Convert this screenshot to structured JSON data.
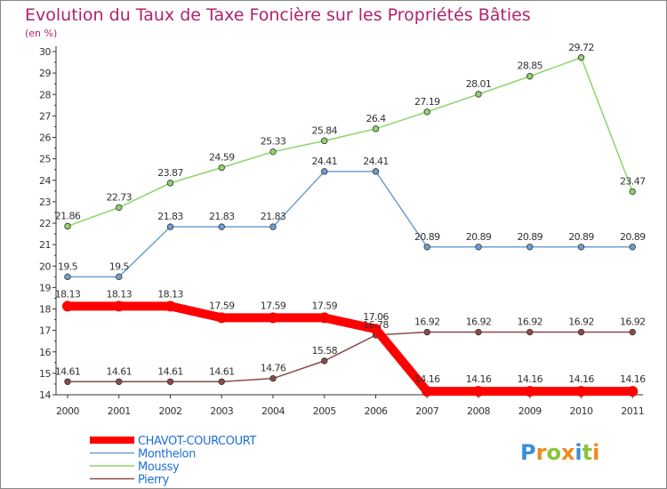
{
  "chart_data": {
    "type": "line",
    "title": "Evolution du Taux de Taxe Foncière sur les Propriétés Bâties",
    "subtitle": "(en %)",
    "x": [
      "2000",
      "2001",
      "2002",
      "2003",
      "2004",
      "2005",
      "2006",
      "2007",
      "2008",
      "2009",
      "2010",
      "2011"
    ],
    "y_ticks": [
      "14",
      "15",
      "16",
      "17",
      "18",
      "19",
      "20",
      "21",
      "22",
      "23",
      "24",
      "25",
      "26",
      "27",
      "28",
      "29",
      "30"
    ],
    "ylim": [
      14,
      30
    ],
    "grid": false,
    "legend_position": "bottom-left",
    "series": [
      {
        "name": "Moussy",
        "color": "#8fd46a",
        "values": [
          21.86,
          22.73,
          23.87,
          24.59,
          25.33,
          25.84,
          26.4,
          27.19,
          28.01,
          28.85,
          29.72,
          23.47
        ],
        "labels": [
          "21.86",
          "22.73",
          "23.87",
          "24.59",
          "25.33",
          "25.84",
          "26.4",
          "27.19",
          "28.01",
          "28.85",
          "29.72",
          "23.47"
        ]
      },
      {
        "name": "Monthelon",
        "color": "#6f9fcf",
        "values": [
          19.5,
          19.5,
          21.83,
          21.83,
          21.83,
          24.41,
          24.41,
          20.89,
          20.89,
          20.89,
          20.89,
          20.89
        ],
        "labels": [
          "19.5",
          "19.5",
          "21.83",
          "21.83",
          "21.83",
          "24.41",
          "24.41",
          "20.89",
          "20.89",
          "20.89",
          "20.89",
          "20.89"
        ]
      },
      {
        "name": "Pierry",
        "color": "#8a4a4a",
        "values": [
          14.61,
          14.61,
          14.61,
          14.61,
          14.76,
          15.58,
          16.78,
          16.92,
          16.92,
          16.92,
          16.92,
          16.92
        ],
        "labels": [
          "14.61",
          "14.61",
          "14.61",
          "14.61",
          "14.76",
          "15.58",
          "16.78",
          "16.92",
          "16.92",
          "16.92",
          "16.92",
          "16.92"
        ]
      },
      {
        "name": "CHAVOT-COURCOURT",
        "color": "#ff0000",
        "values": [
          18.13,
          18.13,
          18.13,
          17.59,
          17.59,
          17.59,
          17.06,
          14.16,
          14.16,
          14.16,
          14.16,
          14.16
        ],
        "labels": [
          "18.13",
          "18.13",
          "18.13",
          "17.59",
          "17.59",
          "17.59",
          "17.06",
          "14.16",
          "14.16",
          "14.16",
          "14.16",
          "14.16"
        ]
      }
    ],
    "legend_order": [
      "CHAVOT-COURCOURT",
      "Monthelon",
      "Moussy",
      "Pierry"
    ]
  },
  "logo": {
    "letters": [
      "P",
      "r",
      "o",
      "x",
      "i",
      "t",
      "i"
    ],
    "colors": [
      "#3a8ed8",
      "#f08a1c",
      "#8ac43a",
      "#f08a1c",
      "#3a8ed8",
      "#8ac43a",
      "#f08a1c"
    ]
  }
}
